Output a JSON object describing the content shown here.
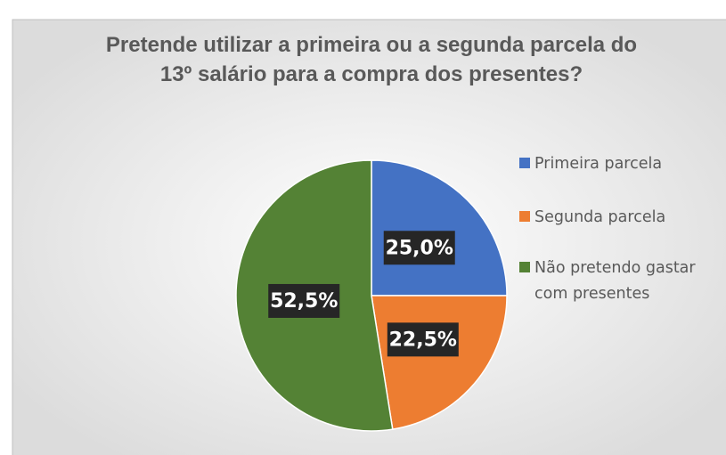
{
  "chart_data": {
    "type": "pie",
    "title": "Pretende utilizar a primeira ou a segunda parcela do 13º salário para a compra dos presentes?",
    "categories": [
      "Primeira parcela",
      "Segunda parcela",
      "Não pretendo gastar com presentes"
    ],
    "values": [
      25,
      22.5,
      52.5
    ],
    "value_labels": [
      "25,0%",
      "22,5%",
      "52,5%"
    ],
    "colors": [
      "#4472c4",
      "#ed7d31",
      "#548235"
    ],
    "legend": "right"
  }
}
